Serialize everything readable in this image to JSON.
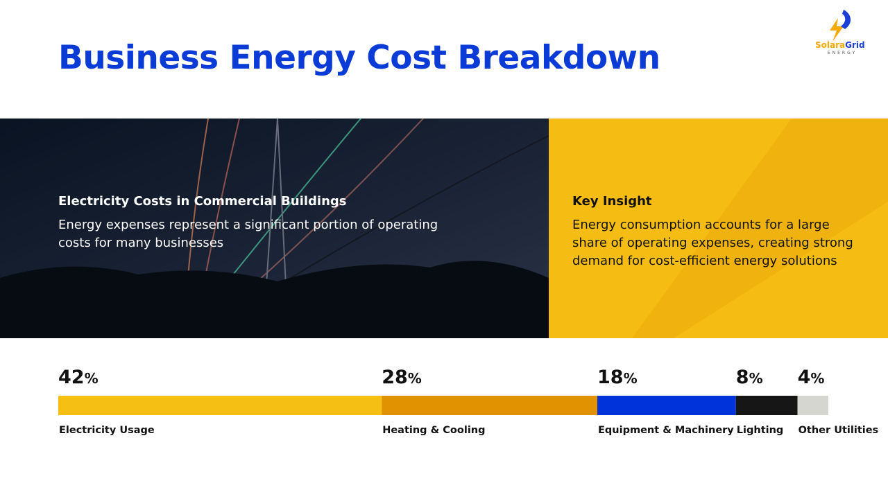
{
  "logo": {
    "name_first": "Solara",
    "name_second": "Grid",
    "tagline": "ENERGY"
  },
  "header": {
    "title": "Business Energy Cost Breakdown"
  },
  "image_panel": {
    "heading": "Electricity Costs in Commercial Buildings",
    "text": "Energy expenses represent a significant portion of operating costs for many businesses"
  },
  "insight_panel": {
    "heading": "Key Insight",
    "text": "Energy consumption accounts for a large share of operating expenses, creating strong demand for cost-efficient energy solutions"
  },
  "chart_data": {
    "type": "stacked-bar",
    "unit": "%",
    "categories": [
      "Electricity Usage",
      "Heating & Cooling",
      "Equipment & Machinery",
      "Lighting",
      "Other Utilities"
    ],
    "values": [
      42,
      28,
      18,
      8,
      4
    ],
    "colors": [
      "#f5bf14",
      "#e09200",
      "#0033d9",
      "#161616",
      "#d6d6d0"
    ]
  }
}
